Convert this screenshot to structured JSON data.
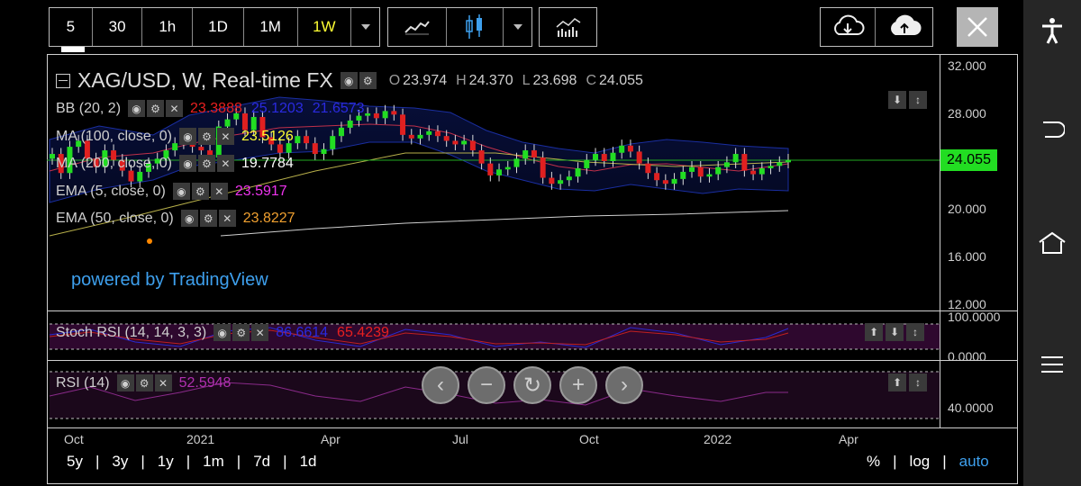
{
  "toolbar": {
    "intervals": [
      "5",
      "30",
      "1h",
      "1D",
      "1M",
      "1W"
    ],
    "active_interval": "1W",
    "accent_color": "#ffff33"
  },
  "chart": {
    "symbol_title": "XAG/USD, W, Real-time FX",
    "ohlc": {
      "O": "23.974",
      "H": "24.370",
      "L": "23.698",
      "C": "24.055"
    },
    "last_price": "24.055",
    "last_price_color": "#22dd22",
    "powered_by": "powered by TradingView"
  },
  "indicators": {
    "bb": {
      "label": "BB (20, 2)",
      "v1": "23.3888",
      "v2": "25.1203",
      "v3": "21.6573"
    },
    "ma100": {
      "label": "MA (100, close, 0)",
      "value": "23.5126"
    },
    "ma200": {
      "label": "MA (200, close, 0)",
      "value": "19.7784"
    },
    "ema5": {
      "label": "EMA (5, close, 0)",
      "value": "23.5917"
    },
    "ema50": {
      "label": "EMA (50, close, 0)",
      "value": "23.8227"
    }
  },
  "stoch_rsi": {
    "label": "Stoch RSI (14, 14, 3, 3)",
    "k": "86.6614",
    "d": "65.4239",
    "axis_top": "100.0000",
    "axis_bottom": "0.0000"
  },
  "rsi": {
    "label": "RSI (14)",
    "value": "52.5948",
    "axis_label": "40.0000"
  },
  "price_axis": [
    "32.000",
    "28.000",
    "24.055",
    "20.000",
    "16.000",
    "12.000"
  ],
  "time_axis": [
    "Oct",
    "2021",
    "Apr",
    "Jul",
    "Oct",
    "2022",
    "Apr"
  ],
  "range_options": [
    "5y",
    "3y",
    "1y",
    "1m",
    "7d",
    "1d"
  ],
  "scale_options": [
    "%",
    "log",
    "auto"
  ],
  "active_scale": "auto"
}
